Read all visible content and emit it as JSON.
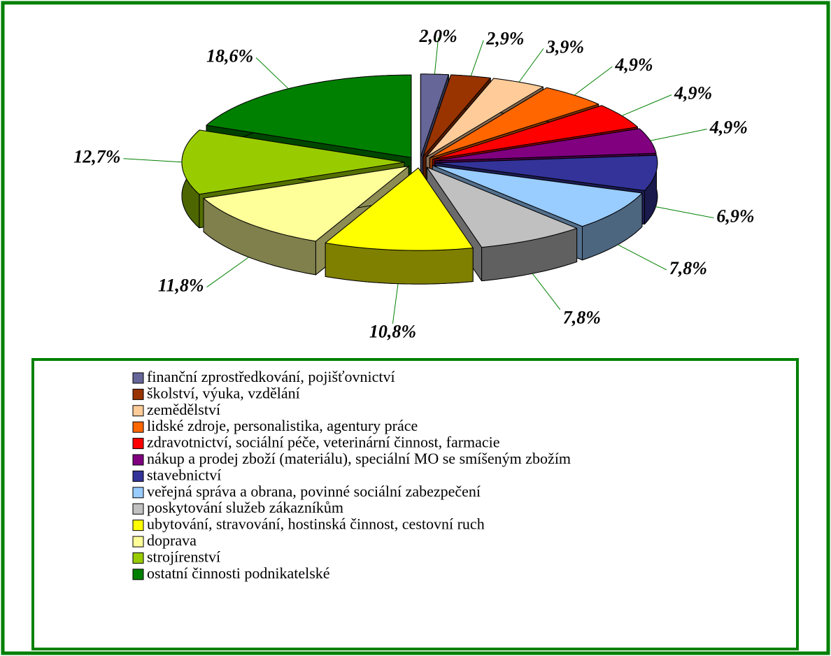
{
  "chart_data": {
    "type": "pie",
    "categories": [
      "finanční zprostředkování, pojišťovnictví",
      "školství, výuka, vzdělání",
      "zemědělství",
      "lidské zdroje, personalistika, agentury práce",
      "zdravotnictví, sociální péče, veterinární činnost, farmacie",
      "nákup a prodej zboží (materiálu), speciální MO se smíšeným zbožím",
      "stavebnictví",
      "veřejná správa a obrana, povinné sociální zabezpečení",
      "poskytování služeb zákazníkům",
      "ubytování, stravování, hostinská činnost, cestovní ruch",
      "doprava",
      "strojírenství",
      "ostatní činnosti podnikatelské"
    ],
    "values": [
      2.0,
      2.9,
      3.9,
      4.9,
      4.9,
      4.9,
      6.9,
      7.8,
      7.8,
      10.8,
      11.8,
      12.7,
      18.6
    ],
    "value_labels": [
      "2,0%",
      "2,9%",
      "3,9%",
      "4,9%",
      "4,9%",
      "4,9%",
      "6,9%",
      "7,8%",
      "7,8%",
      "10,8%",
      "11,8%",
      "12,7%",
      "18,6%"
    ],
    "colors": [
      "#666699",
      "#993300",
      "#ffcc99",
      "#ff6600",
      "#ff0000",
      "#800080",
      "#333399",
      "#99ccff",
      "#c0c0c0",
      "#ffff00",
      "#ffff99",
      "#99cc00",
      "#008000"
    ]
  }
}
